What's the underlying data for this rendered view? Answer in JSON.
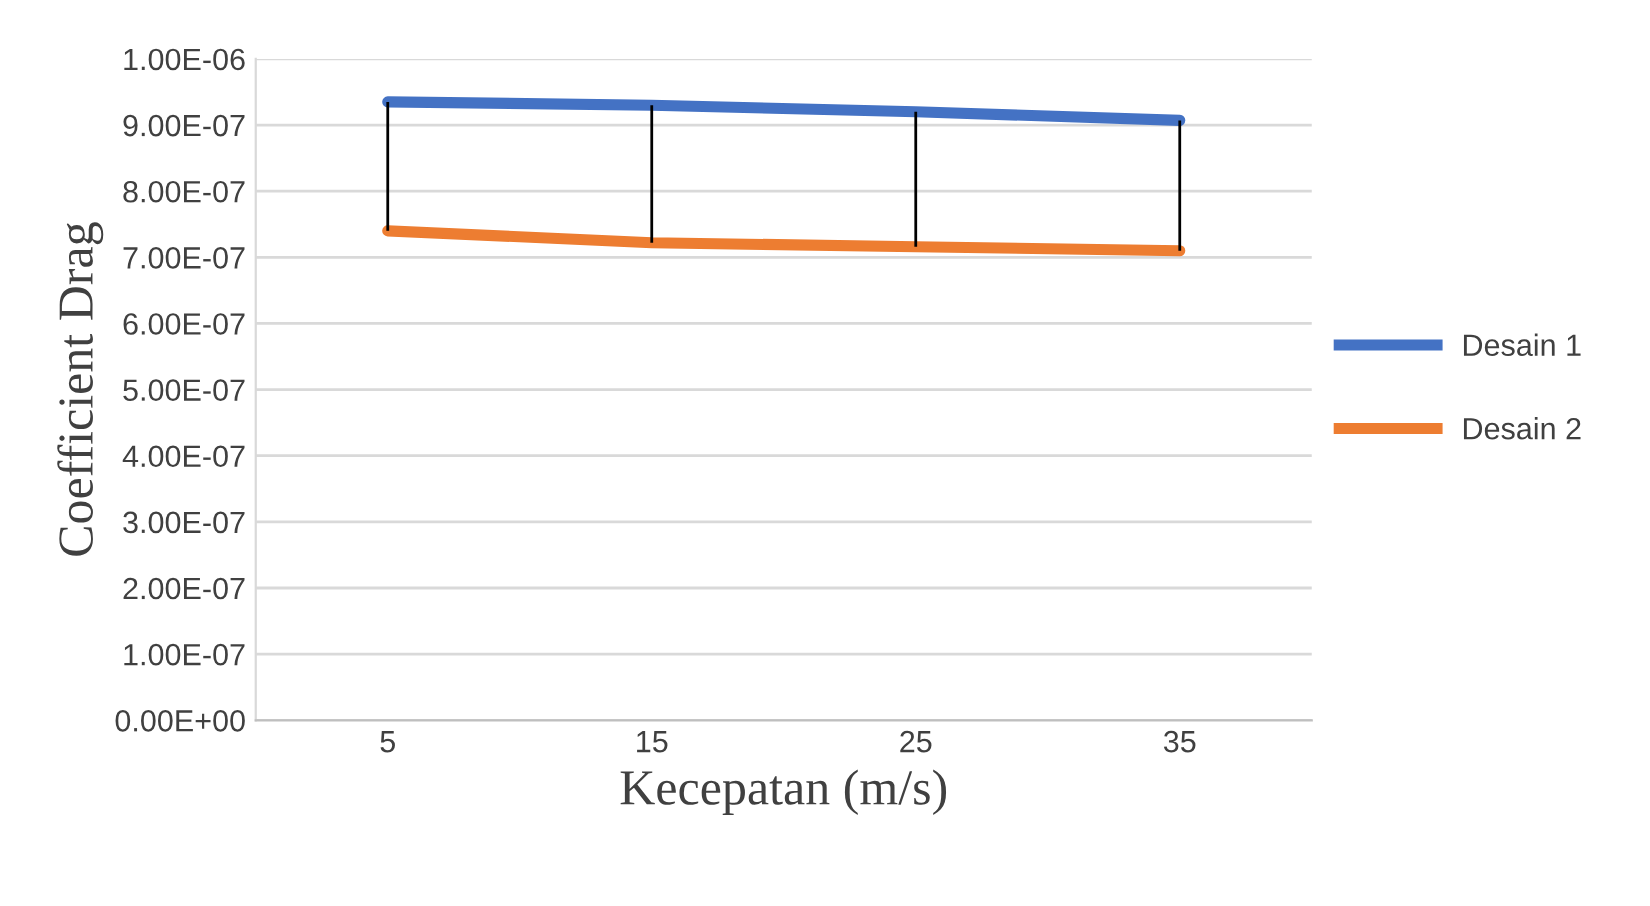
{
  "chart_data": {
    "type": "line",
    "xlabel": "Kecepatan (m/s)",
    "ylabel": "Coefficient Drag",
    "categories": [
      "5",
      "15",
      "25",
      "35"
    ],
    "series": [
      {
        "name": "Desain 1",
        "color": "#4472c4",
        "values": [
          9.35e-07,
          9.3e-07,
          9.2e-07,
          9.07e-07
        ],
        "errors": [
          [
            7.4e-07,
            9.35e-07
          ],
          [
            7.22e-07,
            9.3e-07
          ],
          [
            7.16e-07,
            9.2e-07
          ],
          [
            7.1e-07,
            9.07e-07
          ]
        ]
      },
      {
        "name": "Desain 2",
        "color": "#ed7d31",
        "values": [
          7.4e-07,
          7.22e-07,
          7.16e-07,
          7.1e-07
        ]
      }
    ],
    "ylim": [
      0,
      1e-06
    ],
    "yticks": [
      {
        "value": 0,
        "label": "0.00E+00"
      },
      {
        "value": 1e-07,
        "label": "1.00E-07"
      },
      {
        "value": 2e-07,
        "label": "2.00E-07"
      },
      {
        "value": 3e-07,
        "label": "3.00E-07"
      },
      {
        "value": 4e-07,
        "label": "4.00E-07"
      },
      {
        "value": 5e-07,
        "label": "5.00E-07"
      },
      {
        "value": 6e-07,
        "label": "6.00E-07"
      },
      {
        "value": 7e-07,
        "label": "7.00E-07"
      },
      {
        "value": 8e-07,
        "label": "8.00E-07"
      },
      {
        "value": 9e-07,
        "label": "9.00E-07"
      },
      {
        "value": 1e-06,
        "label": "1.00E-06"
      }
    ],
    "grid": "y",
    "legend": "right",
    "marker": "none",
    "line_style": "solid"
  }
}
